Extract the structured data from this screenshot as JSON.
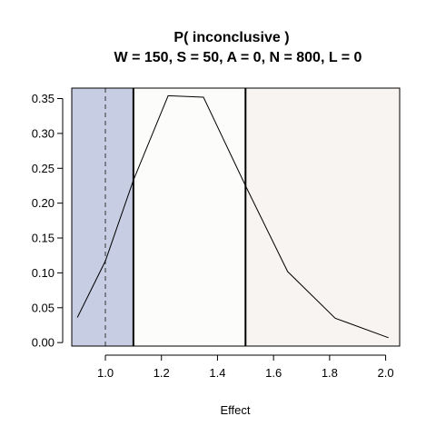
{
  "chart_data": {
    "type": "line",
    "title": "P( inconclusive )",
    "subtitle": "W = 150, S = 50, A = 0, N = 800, L = 0",
    "xlabel": "Effect",
    "ylabel": "",
    "xlim": [
      0.88,
      2.05
    ],
    "ylim": [
      -0.005,
      0.365
    ],
    "x_ticks": [
      1.0,
      1.2,
      1.4,
      1.6,
      1.8,
      2.0
    ],
    "x_tick_labels": [
      "1.0",
      "1.2",
      "1.4",
      "1.6",
      "1.8",
      "2.0"
    ],
    "y_ticks": [
      0.0,
      0.05,
      0.1,
      0.15,
      0.2,
      0.25,
      0.3,
      0.35
    ],
    "y_tick_labels": [
      "0.00",
      "0.05",
      "0.10",
      "0.15",
      "0.20",
      "0.25",
      "0.30",
      "0.35"
    ],
    "series": [
      {
        "x": [
          0.9,
          1.0,
          1.1,
          1.224,
          1.35,
          1.5,
          1.65,
          1.82,
          2.01
        ],
        "y": [
          0.036,
          0.117,
          0.233,
          0.354,
          0.352,
          0.225,
          0.102,
          0.035,
          0.007
        ],
        "color": "#000000"
      }
    ],
    "regions": [
      {
        "from": 0.88,
        "to": 1.1,
        "color": "#c7cde2"
      },
      {
        "from": 1.1,
        "to": 1.5,
        "color": "#fcfcfa"
      },
      {
        "from": 1.5,
        "to": 2.05,
        "color": "#f7f4f1"
      }
    ],
    "vlines_solid": [
      1.1,
      1.5
    ],
    "vline_dashed": 1.0,
    "grid": false,
    "legend": "none"
  }
}
